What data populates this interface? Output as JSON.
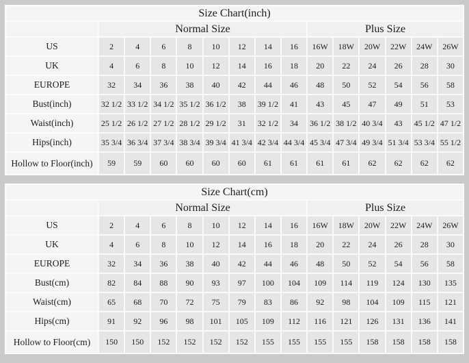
{
  "colors": {
    "page_background": "#cacaca",
    "header_cell_background": "#f0f0f0",
    "label_cell_background": "#f5f5f5",
    "value_cell_background": "#e6e6e6",
    "grid_line": "#fbfbfb",
    "text": "#1b1b1b"
  },
  "chart_data": [
    {
      "type": "table",
      "title": "Size Chart(inch)",
      "group_headers": [
        {
          "label": "Normal Size",
          "span": 8
        },
        {
          "label": "Plus Size",
          "span": 6
        }
      ],
      "rows": [
        {
          "label": "US",
          "values": [
            "2",
            "4",
            "6",
            "8",
            "10",
            "12",
            "14",
            "16",
            "16W",
            "18W",
            "20W",
            "22W",
            "24W",
            "26W"
          ]
        },
        {
          "label": "UK",
          "values": [
            "4",
            "6",
            "8",
            "10",
            "12",
            "14",
            "16",
            "18",
            "20",
            "22",
            "24",
            "26",
            "28",
            "30"
          ]
        },
        {
          "label": "EUROPE",
          "values": [
            "32",
            "34",
            "36",
            "38",
            "40",
            "42",
            "44",
            "46",
            "48",
            "50",
            "52",
            "54",
            "56",
            "58"
          ]
        },
        {
          "label": "Bust(inch)",
          "values": [
            "32 1/2",
            "33 1/2",
            "34 1/2",
            "35 1/2",
            "36 1/2",
            "38",
            "39 1/2",
            "41",
            "43",
            "45",
            "47",
            "49",
            "51",
            "53"
          ]
        },
        {
          "label": "Waist(inch)",
          "values": [
            "25 1/2",
            "26 1/2",
            "27 1/2",
            "28 1/2",
            "29 1/2",
            "31",
            "32 1/2",
            "34",
            "36 1/2",
            "38 1/2",
            "40 3/4",
            "43",
            "45 1/2",
            "47 1/2"
          ]
        },
        {
          "label": "Hips(inch)",
          "values": [
            "35 3/4",
            "36 3/4",
            "37 3/4",
            "38 3/4",
            "39 3/4",
            "41 3/4",
            "42 3/4",
            "44 3/4",
            "45 3/4",
            "47 3/4",
            "49 3/4",
            "51 3/4",
            "53 3/4",
            "55 1/2"
          ]
        },
        {
          "label": "Hollow to Floor(inch)",
          "values": [
            "59",
            "59",
            "60",
            "60",
            "60",
            "60",
            "61",
            "61",
            "61",
            "61",
            "62",
            "62",
            "62",
            "62"
          ]
        }
      ]
    },
    {
      "type": "table",
      "title": "Size Chart(cm)",
      "group_headers": [
        {
          "label": "Normal Size",
          "span": 8
        },
        {
          "label": "Plus Size",
          "span": 6
        }
      ],
      "rows": [
        {
          "label": "US",
          "values": [
            "2",
            "4",
            "6",
            "8",
            "10",
            "12",
            "14",
            "16",
            "16W",
            "18W",
            "20W",
            "22W",
            "24W",
            "26W"
          ]
        },
        {
          "label": "UK",
          "values": [
            "4",
            "6",
            "8",
            "10",
            "12",
            "14",
            "16",
            "18",
            "20",
            "22",
            "24",
            "26",
            "28",
            "30"
          ]
        },
        {
          "label": "EUROPE",
          "values": [
            "32",
            "34",
            "36",
            "38",
            "40",
            "42",
            "44",
            "46",
            "48",
            "50",
            "52",
            "54",
            "56",
            "58"
          ]
        },
        {
          "label": "Bust(cm)",
          "values": [
            "82",
            "84",
            "88",
            "90",
            "93",
            "97",
            "100",
            "104",
            "109",
            "114",
            "119",
            "124",
            "130",
            "135"
          ]
        },
        {
          "label": "Waist(cm)",
          "values": [
            "65",
            "68",
            "70",
            "72",
            "75",
            "79",
            "83",
            "86",
            "92",
            "98",
            "104",
            "109",
            "115",
            "121"
          ]
        },
        {
          "label": "Hips(cm)",
          "values": [
            "91",
            "92",
            "96",
            "98",
            "101",
            "105",
            "109",
            "112",
            "116",
            "121",
            "126",
            "131",
            "136",
            "141"
          ]
        },
        {
          "label": "Hollow to Floor(cm)",
          "values": [
            "150",
            "150",
            "152",
            "152",
            "152",
            "152",
            "155",
            "155",
            "155",
            "155",
            "158",
            "158",
            "158",
            "158"
          ]
        }
      ]
    }
  ]
}
